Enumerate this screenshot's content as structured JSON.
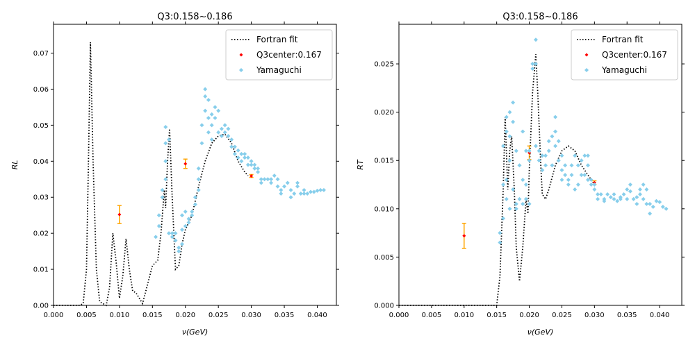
{
  "chart_data": [
    {
      "type": "line",
      "title": "Q3:0.158~0.186",
      "xlabel": "ν(GeV)",
      "ylabel": "RL",
      "xlim": [
        0,
        0.0429
      ],
      "ylim": [
        0,
        0.078
      ],
      "xticks": [
        {
          "value": 0,
          "label": "0.000"
        },
        {
          "value": 0.005,
          "label": "0.005"
        },
        {
          "value": 0.01,
          "label": "0.010"
        },
        {
          "value": 0.015,
          "label": "0.015"
        },
        {
          "value": 0.02,
          "label": "0.020"
        },
        {
          "value": 0.025,
          "label": "0.025"
        },
        {
          "value": 0.03,
          "label": "0.030"
        },
        {
          "value": 0.035,
          "label": "0.035"
        },
        {
          "value": 0.04,
          "label": "0.040"
        }
      ],
      "yticks": [
        {
          "value": 0,
          "label": "0.00"
        },
        {
          "value": 0.01,
          "label": "0.01"
        },
        {
          "value": 0.02,
          "label": "0.02"
        },
        {
          "value": 0.03,
          "label": "0.03"
        },
        {
          "value": 0.04,
          "label": "0.04"
        },
        {
          "value": 0.05,
          "label": "0.05"
        },
        {
          "value": 0.06,
          "label": "0.06"
        },
        {
          "value": 0.07,
          "label": "0.07"
        }
      ],
      "legend": "upper right",
      "series": [
        {
          "name": "Fortran fit",
          "kind": "line",
          "color": "#000000",
          "x": [
            0,
            0.004,
            0.0045,
            0.005,
            0.0053,
            0.0056,
            0.006,
            0.0065,
            0.007,
            0.008,
            0.0085,
            0.009,
            0.0095,
            0.01,
            0.0105,
            0.011,
            0.0115,
            0.012,
            0.0125,
            0.013,
            0.0135,
            0.014,
            0.015,
            0.0158,
            0.0163,
            0.0168,
            0.017,
            0.0173,
            0.0176,
            0.018,
            0.0185,
            0.019,
            0.0195,
            0.02,
            0.021,
            0.022,
            0.023,
            0.024,
            0.025,
            0.026,
            0.027,
            0.028,
            0.029,
            0.0295
          ],
          "values": [
            0,
            0,
            0.0005,
            0.01,
            0.04,
            0.073,
            0.04,
            0.01,
            0.001,
            0,
            0.005,
            0.02,
            0.012,
            0.002,
            0.008,
            0.0185,
            0.01,
            0.004,
            0.0035,
            0.002,
            0.0005,
            0.004,
            0.011,
            0.0125,
            0.02,
            0.032,
            0.027,
            0.04,
            0.049,
            0.03,
            0.01,
            0.011,
            0.017,
            0.021,
            0.025,
            0.033,
            0.04,
            0.045,
            0.047,
            0.0475,
            0.045,
            0.04,
            0.037,
            0.036
          ]
        },
        {
          "name": "Q3center:0.167",
          "kind": "errorbar",
          "color": "#ff0000",
          "error_color": "#ffa500",
          "x": [
            0.01,
            0.02,
            0.03
          ],
          "values": [
            0.0252,
            0.0393,
            0.0359
          ],
          "errors": [
            0.0025,
            0.0013,
            0.0004
          ]
        },
        {
          "name": "Yamaguchi",
          "kind": "scatter",
          "color": "#87ceeb",
          "x": [
            0.0155,
            0.016,
            0.016,
            0.0165,
            0.0165,
            0.017,
            0.017,
            0.017,
            0.017,
            0.0175,
            0.0175,
            0.018,
            0.018,
            0.0185,
            0.0185,
            0.019,
            0.019,
            0.0195,
            0.0195,
            0.0195,
            0.02,
            0.02,
            0.0205,
            0.0205,
            0.021,
            0.021,
            0.0215,
            0.0215,
            0.022,
            0.022,
            0.022,
            0.0225,
            0.0225,
            0.023,
            0.023,
            0.023,
            0.0235,
            0.0235,
            0.0235,
            0.024,
            0.024,
            0.024,
            0.0245,
            0.0245,
            0.025,
            0.025,
            0.0255,
            0.0255,
            0.026,
            0.026,
            0.0265,
            0.0265,
            0.027,
            0.027,
            0.0275,
            0.0275,
            0.028,
            0.028,
            0.0285,
            0.0285,
            0.029,
            0.029,
            0.0295,
            0.0295,
            0.03,
            0.03,
            0.0305,
            0.0305,
            0.031,
            0.031,
            0.0315,
            0.0315,
            0.032,
            0.0325,
            0.033,
            0.033,
            0.0335,
            0.034,
            0.034,
            0.0345,
            0.0345,
            0.035,
            0.0355,
            0.036,
            0.036,
            0.0365,
            0.037,
            0.037,
            0.0375,
            0.038,
            0.038,
            0.0385,
            0.039,
            0.0395,
            0.04,
            0.0405,
            0.041
          ],
          "values": [
            0.019,
            0.022,
            0.025,
            0.03,
            0.032,
            0.035,
            0.04,
            0.045,
            0.0495,
            0.046,
            0.02,
            0.019,
            0.02,
            0.02,
            0.018,
            0.016,
            0.015,
            0.017,
            0.021,
            0.025,
            0.026,
            0.022,
            0.023,
            0.024,
            0.025,
            0.026,
            0.028,
            0.03,
            0.032,
            0.035,
            0.038,
            0.045,
            0.05,
            0.054,
            0.058,
            0.06,
            0.057,
            0.052,
            0.048,
            0.053,
            0.05,
            0.046,
            0.055,
            0.052,
            0.054,
            0.048,
            0.049,
            0.047,
            0.05,
            0.048,
            0.049,
            0.047,
            0.046,
            0.044,
            0.044,
            0.042,
            0.043,
            0.041,
            0.042,
            0.04,
            0.042,
            0.041,
            0.041,
            0.039,
            0.04,
            0.039,
            0.039,
            0.038,
            0.038,
            0.037,
            0.035,
            0.034,
            0.035,
            0.035,
            0.035,
            0.034,
            0.036,
            0.035,
            0.033,
            0.032,
            0.031,
            0.033,
            0.034,
            0.032,
            0.03,
            0.031,
            0.034,
            0.033,
            0.031,
            0.032,
            0.031,
            0.031,
            0.0315,
            0.0315,
            0.0318,
            0.032,
            0.032
          ]
        }
      ]
    },
    {
      "type": "line",
      "title": "Q3:0.158~0.186",
      "xlabel": "ν(GeV)",
      "ylabel": "RT",
      "xlim": [
        0,
        0.0434
      ],
      "ylim": [
        0,
        0.0291
      ],
      "xticks": [
        {
          "value": 0,
          "label": "0.000"
        },
        {
          "value": 0.005,
          "label": "0.005"
        },
        {
          "value": 0.01,
          "label": "0.010"
        },
        {
          "value": 0.015,
          "label": "0.015"
        },
        {
          "value": 0.02,
          "label": "0.020"
        },
        {
          "value": 0.025,
          "label": "0.025"
        },
        {
          "value": 0.03,
          "label": "0.030"
        },
        {
          "value": 0.035,
          "label": "0.035"
        },
        {
          "value": 0.04,
          "label": "0.040"
        }
      ],
      "yticks": [
        {
          "value": 0,
          "label": "0.000"
        },
        {
          "value": 0.005,
          "label": "0.005"
        },
        {
          "value": 0.01,
          "label": "0.010"
        },
        {
          "value": 0.015,
          "label": "0.015"
        },
        {
          "value": 0.02,
          "label": "0.020"
        },
        {
          "value": 0.025,
          "label": "0.025"
        }
      ],
      "legend": "upper right",
      "series": [
        {
          "name": "Fortran fit",
          "kind": "line",
          "color": "#000000",
          "x": [
            0,
            0.015,
            0.0155,
            0.016,
            0.0163,
            0.0167,
            0.017,
            0.0173,
            0.0177,
            0.018,
            0.0185,
            0.019,
            0.0195,
            0.0198,
            0.02,
            0.0205,
            0.021,
            0.0213,
            0.0218,
            0.022,
            0.0225,
            0.023,
            0.024,
            0.025,
            0.026,
            0.027,
            0.028,
            0.029,
            0.03
          ],
          "values": [
            0,
            0,
            0.003,
            0.012,
            0.0195,
            0.012,
            0.016,
            0.0175,
            0.012,
            0.006,
            0.0025,
            0.006,
            0.011,
            0.0095,
            0.014,
            0.022,
            0.026,
            0.022,
            0.014,
            0.0115,
            0.011,
            0.012,
            0.0145,
            0.016,
            0.0165,
            0.016,
            0.0145,
            0.0135,
            0.0125
          ]
        },
        {
          "name": "Q3center:0.167",
          "kind": "errorbar",
          "color": "#ff0000",
          "error_color": "#ffa500",
          "x": [
            0.01,
            0.02,
            0.03
          ],
          "values": [
            0.0072,
            0.0158,
            0.0127
          ],
          "errors": [
            0.0013,
            0.0007,
            0.0002
          ]
        },
        {
          "name": "Yamaguchi",
          "kind": "scatter",
          "color": "#87ceeb",
          "x": [
            0.0155,
            0.0155,
            0.016,
            0.016,
            0.016,
            0.0165,
            0.0165,
            0.0165,
            0.0165,
            0.017,
            0.017,
            0.017,
            0.017,
            0.0175,
            0.0175,
            0.0175,
            0.018,
            0.018,
            0.018,
            0.0185,
            0.0185,
            0.019,
            0.019,
            0.019,
            0.0195,
            0.0195,
            0.0195,
            0.02,
            0.02,
            0.02,
            0.0205,
            0.0205,
            0.021,
            0.021,
            0.021,
            0.0215,
            0.0215,
            0.022,
            0.022,
            0.0225,
            0.0225,
            0.023,
            0.023,
            0.0235,
            0.0235,
            0.024,
            0.024,
            0.024,
            0.0245,
            0.0245,
            0.025,
            0.025,
            0.025,
            0.0255,
            0.0255,
            0.026,
            0.026,
            0.0265,
            0.0265,
            0.027,
            0.027,
            0.0275,
            0.0275,
            0.028,
            0.028,
            0.0285,
            0.0285,
            0.029,
            0.029,
            0.029,
            0.0295,
            0.0295,
            0.03,
            0.03,
            0.0305,
            0.0305,
            0.031,
            0.0315,
            0.0315,
            0.032,
            0.0325,
            0.033,
            0.033,
            0.0335,
            0.034,
            0.034,
            0.0345,
            0.035,
            0.035,
            0.0355,
            0.0355,
            0.036,
            0.0365,
            0.0365,
            0.037,
            0.037,
            0.0375,
            0.0375,
            0.038,
            0.038,
            0.0385,
            0.0385,
            0.039,
            0.0395,
            0.04,
            0.0405,
            0.041
          ],
          "values": [
            0.0065,
            0.0075,
            0.009,
            0.0125,
            0.0165,
            0.0195,
            0.018,
            0.013,
            0.011,
            0.02,
            0.0175,
            0.015,
            0.01,
            0.021,
            0.019,
            0.012,
            0.016,
            0.0105,
            0.01,
            0.0145,
            0.011,
            0.018,
            0.013,
            0.0105,
            0.016,
            0.0125,
            0.011,
            0.015,
            0.016,
            0.0105,
            0.025,
            0.0245,
            0.0275,
            0.025,
            0.0165,
            0.016,
            0.015,
            0.0155,
            0.014,
            0.0145,
            0.0155,
            0.016,
            0.017,
            0.0175,
            0.0145,
            0.018,
            0.0195,
            0.0165,
            0.017,
            0.015,
            0.0155,
            0.014,
            0.013,
            0.0145,
            0.0135,
            0.013,
            0.0125,
            0.0135,
            0.0145,
            0.0155,
            0.012,
            0.0145,
            0.0125,
            0.015,
            0.0135,
            0.0155,
            0.0135,
            0.0155,
            0.0145,
            0.013,
            0.013,
            0.0125,
            0.012,
            0.0125,
            0.011,
            0.0115,
            0.0115,
            0.011,
            0.0108,
            0.0115,
            0.0112,
            0.0115,
            0.011,
            0.0108,
            0.0112,
            0.011,
            0.0115,
            0.012,
            0.011,
            0.0125,
            0.0118,
            0.011,
            0.0112,
            0.0105,
            0.0115,
            0.012,
            0.0125,
            0.011,
            0.012,
            0.0105,
            0.0095,
            0.0105,
            0.0102,
            0.0108,
            0.0107,
            0.0102,
            0.01
          ]
        }
      ]
    }
  ]
}
